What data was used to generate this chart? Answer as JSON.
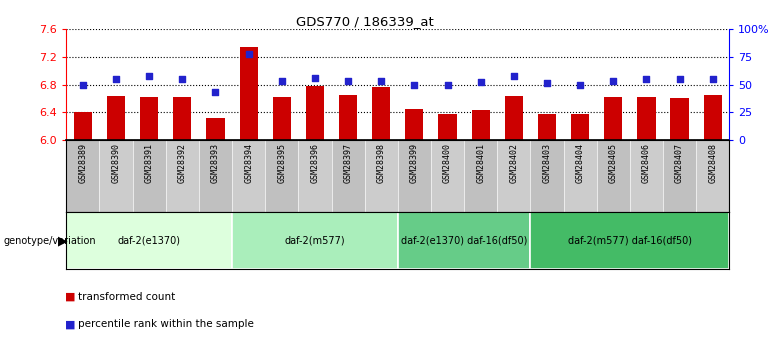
{
  "title": "GDS770 / 186339_at",
  "samples": [
    "GSM28389",
    "GSM28390",
    "GSM28391",
    "GSM28392",
    "GSM28393",
    "GSM28394",
    "GSM28395",
    "GSM28396",
    "GSM28397",
    "GSM28398",
    "GSM28399",
    "GSM28400",
    "GSM28401",
    "GSM28402",
    "GSM28403",
    "GSM28404",
    "GSM28405",
    "GSM28406",
    "GSM28407",
    "GSM28408"
  ],
  "bar_values": [
    6.4,
    6.63,
    6.62,
    6.62,
    6.31,
    7.35,
    6.62,
    6.78,
    6.65,
    6.77,
    6.45,
    6.37,
    6.43,
    6.64,
    6.38,
    6.37,
    6.62,
    6.62,
    6.6,
    6.65
  ],
  "dot_percentiles": [
    50,
    55,
    58,
    55,
    43,
    78,
    53,
    56,
    53,
    53,
    50,
    50,
    52,
    58,
    51,
    50,
    53,
    55,
    55,
    55
  ],
  "ylim": [
    6.0,
    7.6
  ],
  "yticks": [
    6.0,
    6.4,
    6.8,
    7.2,
    7.6
  ],
  "y2ticks": [
    0,
    25,
    50,
    75,
    100
  ],
  "y2labels": [
    "0",
    "25",
    "50",
    "75",
    "100%"
  ],
  "bar_color": "#cc0000",
  "dot_color": "#2222cc",
  "bar_baseline": 6.0,
  "groups": [
    {
      "label": "daf-2(e1370)",
      "start": 0,
      "end": 5,
      "color": "#ddffdd"
    },
    {
      "label": "daf-2(m577)",
      "start": 5,
      "end": 10,
      "color": "#aaeebb"
    },
    {
      "label": "daf-2(e1370) daf-16(df50)",
      "start": 10,
      "end": 14,
      "color": "#66cc88"
    },
    {
      "label": "daf-2(m577) daf-16(df50)",
      "start": 14,
      "end": 20,
      "color": "#44bb66"
    }
  ],
  "genotype_label": "genotype/variation",
  "legend_bar": "transformed count",
  "legend_dot": "percentile rank within the sample",
  "bg_color": "#ffffff",
  "tick_bg_color": "#bbbbbb",
  "tick_bg_alt": "#cccccc"
}
